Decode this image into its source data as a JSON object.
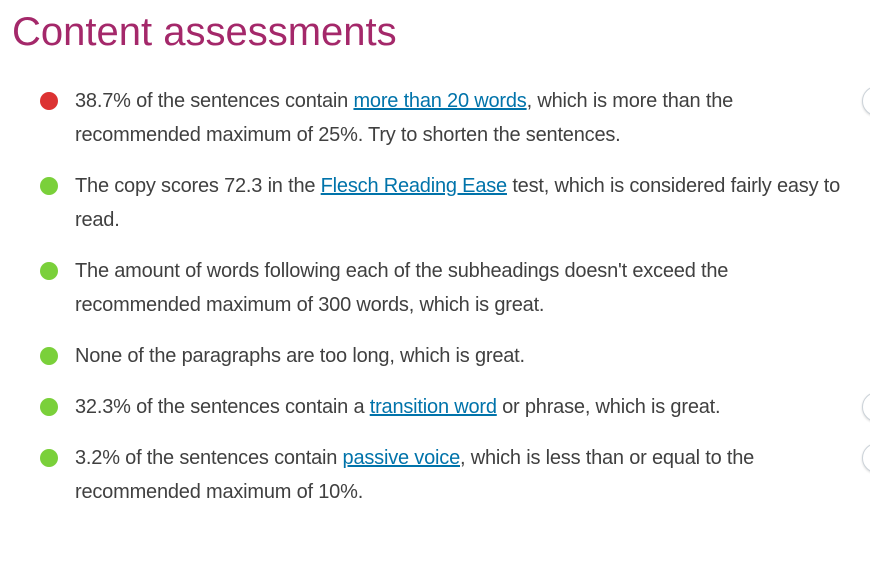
{
  "page": {
    "title": "Content assessments",
    "colors": {
      "title": "#a4286a",
      "body_text": "#404040",
      "link": "#0073aa",
      "bullet_red": "#dc3232",
      "bullet_green": "#7ad03a"
    }
  },
  "assessments": [
    {
      "name": "sentence-length",
      "status": "red",
      "status_icon": "red-dot-icon",
      "eye_button_visible": true,
      "segments": [
        {
          "text": "38.7% of the sentences contain "
        },
        {
          "text": "more than 20 words",
          "link": true
        },
        {
          "text": ", which is more than the recommended maximum of 25%. Try to shorten the sentences."
        }
      ]
    },
    {
      "name": "flesch-reading-ease",
      "status": "green",
      "status_icon": "green-dot-icon",
      "eye_button_visible": false,
      "segments": [
        {
          "text": "The copy scores 72.3 in the "
        },
        {
          "text": "Flesch Reading Ease",
          "link": true
        },
        {
          "text": " test, which is considered fairly easy to read."
        }
      ]
    },
    {
      "name": "subheading-distribution",
      "status": "green",
      "status_icon": "green-dot-icon",
      "eye_button_visible": false,
      "segments": [
        {
          "text": "The amount of words following each of the subheadings doesn't exceed the recommended maximum of 300 words, which is great."
        }
      ]
    },
    {
      "name": "paragraph-length",
      "status": "green",
      "status_icon": "green-dot-icon",
      "eye_button_visible": false,
      "segments": [
        {
          "text": "None of the paragraphs are too long, which is great."
        }
      ]
    },
    {
      "name": "transition-words",
      "status": "green",
      "status_icon": "green-dot-icon",
      "eye_button_visible": true,
      "segments": [
        {
          "text": "32.3% of the sentences contain a "
        },
        {
          "text": "transition word",
          "link": true
        },
        {
          "text": " or phrase, which is great."
        }
      ]
    },
    {
      "name": "passive-voice",
      "status": "green",
      "status_icon": "green-dot-icon",
      "eye_button_visible": true,
      "segments": [
        {
          "text": "3.2% of the sentences contain "
        },
        {
          "text": "passive voice",
          "link": true
        },
        {
          "text": ", which is less than or equal to the recommended maximum of 10%."
        }
      ]
    }
  ]
}
